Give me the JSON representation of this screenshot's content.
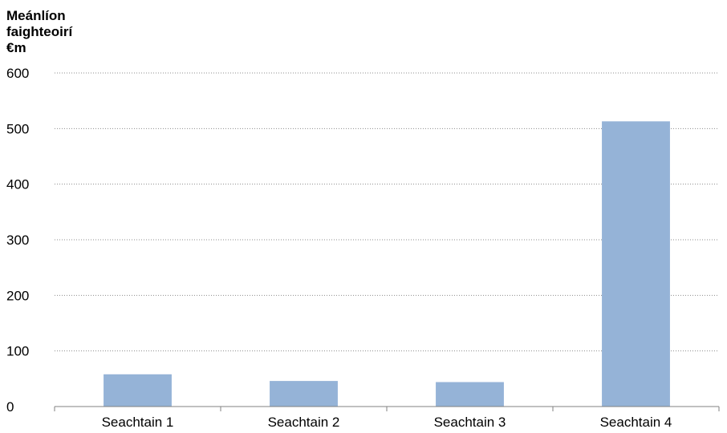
{
  "chart_data": {
    "type": "bar",
    "ylabel_lines": [
      "Meánlíon",
      "faighteoirí",
      "€m"
    ],
    "categories": [
      "Seachtain 1",
      "Seachtain 2",
      "Seachtain 3",
      "Seachtain 4"
    ],
    "values": [
      58,
      46,
      44,
      513
    ],
    "ylim": [
      0,
      600
    ],
    "yticks": [
      0,
      100,
      200,
      300,
      400,
      500,
      600
    ],
    "grid": true,
    "grid_style": "dotted",
    "bar_color": "#95b3d7",
    "axis_color": "#808080",
    "grid_color": "#8c8c8c",
    "text_color": "#000000"
  }
}
